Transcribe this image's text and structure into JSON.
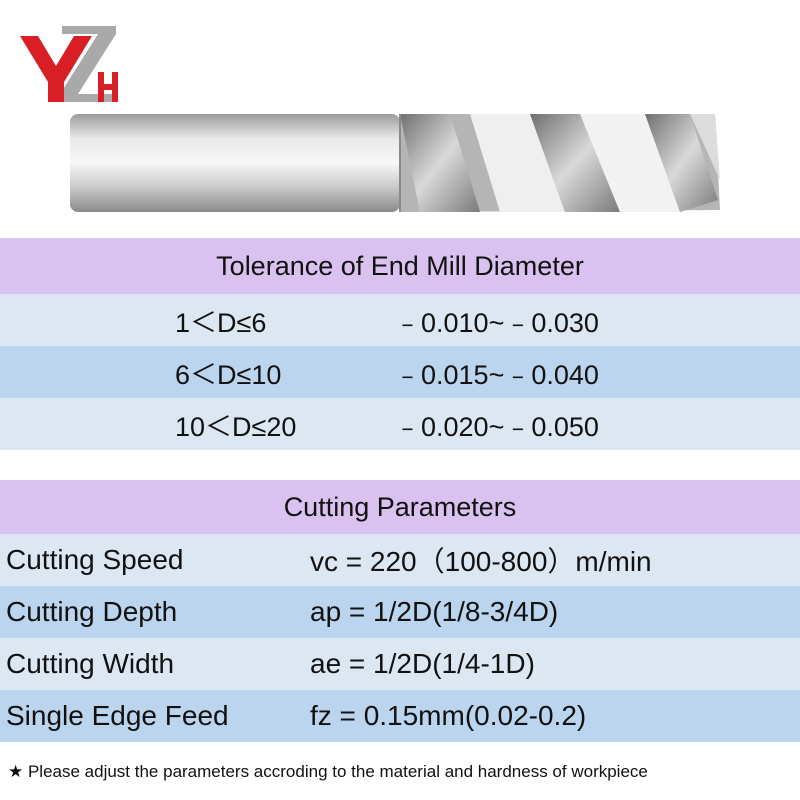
{
  "logo": {
    "letters": "YZH",
    "primary_color": "#d81f26",
    "secondary_color": "#9a9a9a"
  },
  "product_image": {
    "icon": "end-mill-icon",
    "description_color": "#c8c8c8"
  },
  "tolerance": {
    "title": "Tolerance of End Mill Diameter",
    "rows": [
      {
        "range": "1＜D≤6",
        "value": "﹣0.010~﹣0.030"
      },
      {
        "range": "6＜D≤10",
        "value": "﹣0.015~﹣0.040"
      },
      {
        "range": "10＜D≤20",
        "value": "﹣0.020~﹣0.050"
      }
    ]
  },
  "cutting": {
    "title": "Cutting Parameters",
    "rows": [
      {
        "label": "Cutting Speed",
        "value": "vc = 220（100-800）m/min"
      },
      {
        "label": "Cutting Depth",
        "value": "ap = 1/2D(1/8-3/4D)"
      },
      {
        "label": "Cutting Width",
        "value": "ae = 1/2D(1/4-1D)"
      },
      {
        "label": "Single Edge Feed",
        "value": "fz = 0.15mm(0.02-0.2)"
      }
    ]
  },
  "note": "★ Please adjust the parameters accroding to the material and hardness of workpiece",
  "colors": {
    "header_bg": "#d9c2f0",
    "row_light": "#dde7f2",
    "row_dark": "#bcd5ee"
  }
}
